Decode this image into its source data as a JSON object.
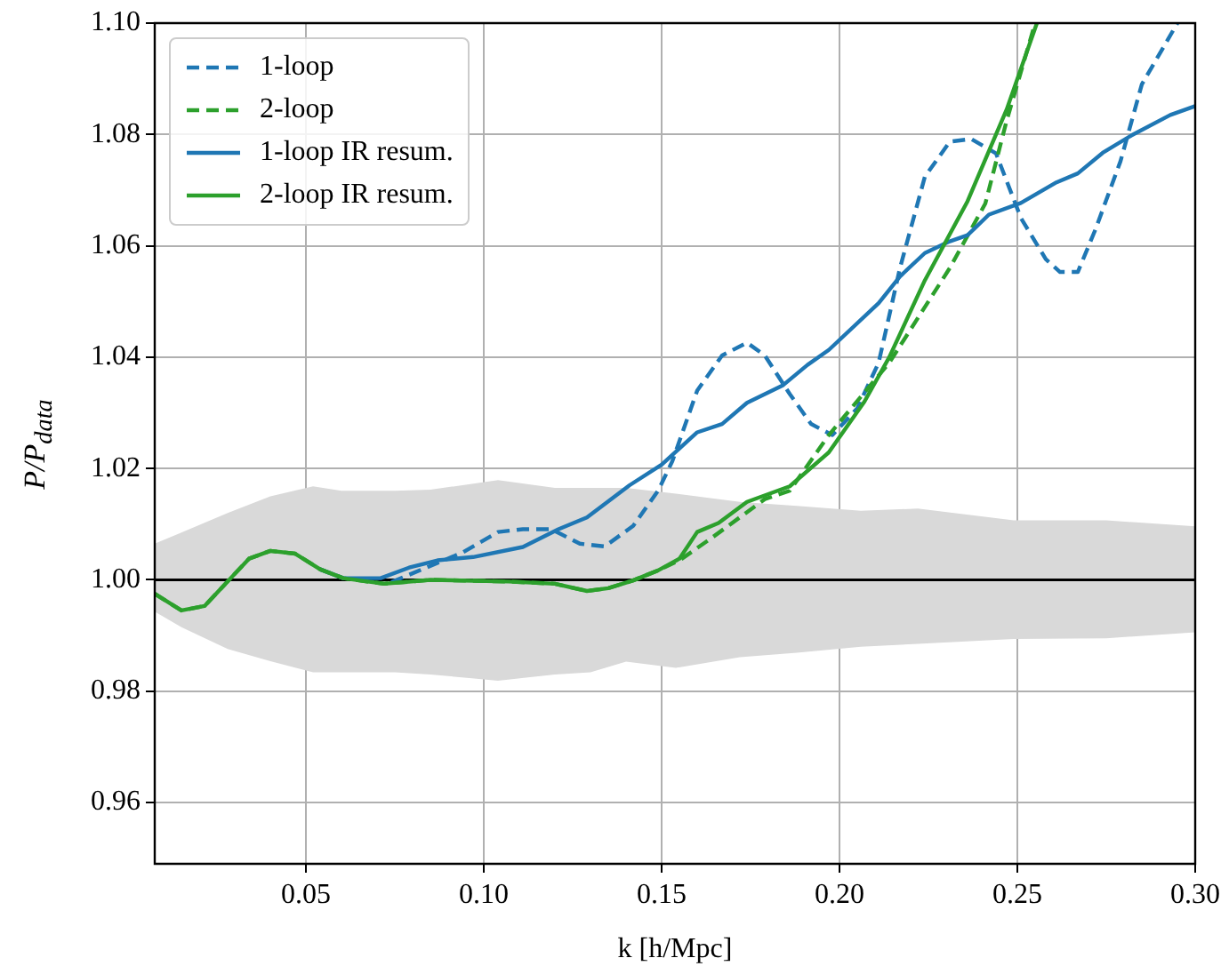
{
  "chart_data": {
    "type": "line",
    "xlabel": "k [h/Mpc]",
    "ylabel": "P/P$_{data}$",
    "xlim": [
      0.0075,
      0.3
    ],
    "ylim": [
      0.949,
      1.1
    ],
    "xticks": [
      {
        "value": 0.05,
        "label": "0.05"
      },
      {
        "value": 0.1,
        "label": "0.10"
      },
      {
        "value": 0.15,
        "label": "0.15"
      },
      {
        "value": 0.2,
        "label": "0.20"
      },
      {
        "value": 0.25,
        "label": "0.25"
      },
      {
        "value": 0.3,
        "label": "0.30"
      }
    ],
    "yticks": [
      {
        "value": 0.96,
        "label": "0.96"
      },
      {
        "value": 0.98,
        "label": "0.98"
      },
      {
        "value": 1.0,
        "label": "1.00"
      },
      {
        "value": 1.02,
        "label": "1.02"
      },
      {
        "value": 1.04,
        "label": "1.04"
      },
      {
        "value": 1.06,
        "label": "1.06"
      },
      {
        "value": 1.08,
        "label": "1.08"
      },
      {
        "value": 1.1,
        "label": "1.10"
      }
    ],
    "grid": true,
    "legend": "top left",
    "series": [
      {
        "color": "#000000",
        "line_style": "solid",
        "x": [
          0.0075,
          0.015,
          0.028,
          0.04,
          0.052,
          0.06,
          0.075,
          0.085,
          0.104,
          0.12,
          0.13,
          0.14,
          0.154,
          0.172,
          0.188,
          0.206,
          0.222,
          0.249,
          0.275,
          0.3
        ],
        "values": [
          1,
          1,
          1,
          1,
          1,
          1,
          1,
          1,
          1,
          1,
          1,
          1,
          1,
          1,
          1,
          1,
          1,
          1,
          1,
          1
        ],
        "upper": [
          1.0065,
          1.0085,
          1.012,
          1.015,
          1.0168,
          1.016,
          1.016,
          1.0162,
          1.0179,
          1.0165,
          1.0165,
          1.0165,
          1.0155,
          1.014,
          1.0133,
          1.0124,
          1.0128,
          1.0107,
          1.0107,
          1.0096
        ],
        "lower": [
          0.9943,
          0.9915,
          0.9876,
          0.9854,
          0.9834,
          0.9834,
          0.9834,
          0.983,
          0.9819,
          0.983,
          0.9834,
          0.9853,
          0.9842,
          0.9861,
          0.9869,
          0.988,
          0.9885,
          0.9894,
          0.9895,
          0.9906
        ]
      },
      {
        "name": "1-loop",
        "color": "#1f77b4",
        "line_style": "dashed",
        "x": [
          0.074,
          0.082,
          0.094,
          0.104,
          0.111,
          0.119,
          0.127,
          0.134,
          0.142,
          0.149,
          0.153,
          0.16,
          0.167,
          0.174,
          0.179,
          0.186,
          0.192,
          0.198,
          0.205,
          0.211,
          0.217,
          0.224,
          0.231,
          0.237,
          0.244,
          0.251,
          0.258,
          0.262,
          0.267,
          0.272,
          0.279,
          0.285,
          0.295
        ],
        "values": [
          0.9996,
          1.0017,
          1.0049,
          1.0086,
          1.0091,
          1.0091,
          1.0065,
          1.006,
          1.0097,
          1.016,
          1.0213,
          1.034,
          1.0403,
          1.0426,
          1.0403,
          1.0334,
          1.028,
          1.026,
          1.0308,
          1.039,
          1.056,
          1.0724,
          1.0787,
          1.0792,
          1.0766,
          1.065,
          1.0576,
          1.0553,
          1.0553,
          1.063,
          1.0752,
          1.089,
          1.1
        ]
      },
      {
        "name": "2-loop",
        "color": "#2ca02c",
        "line_style": "dashed",
        "x": [
          0.0075,
          0.015,
          0.0215,
          0.034,
          0.04,
          0.047,
          0.054,
          0.0605,
          0.072,
          0.085,
          0.107,
          0.12,
          0.129,
          0.135,
          0.142,
          0.149,
          0.155,
          0.164,
          0.179,
          0.186,
          0.197,
          0.214,
          0.231,
          0.241,
          0.247,
          0.255
        ],
        "values": [
          0.9975,
          0.9945,
          0.9953,
          1.0038,
          1.0052,
          1.0047,
          1.0019,
          1.0003,
          0.9993,
          1.0,
          0.9997,
          0.9993,
          0.998,
          0.9985,
          0.9999,
          1.0017,
          1.0035,
          1.0075,
          1.0145,
          1.016,
          1.026,
          1.039,
          1.056,
          1.0676,
          1.0825,
          1.1
        ]
      },
      {
        "name": "1-loop IR resum.",
        "color": "#1f77b4",
        "line_style": "solid",
        "x": [
          0.054,
          0.0605,
          0.071,
          0.079,
          0.087,
          0.097,
          0.111,
          0.121,
          0.129,
          0.141,
          0.15,
          0.16,
          0.167,
          0.174,
          0.184,
          0.191,
          0.197,
          0.211,
          0.217,
          0.224,
          0.231,
          0.236,
          0.242,
          0.251,
          0.261,
          0.267,
          0.274,
          0.282,
          0.293,
          0.3
        ],
        "values": [
          1.0019,
          1.0003,
          1.0003,
          1.0022,
          1.0035,
          1.0041,
          1.0059,
          1.0091,
          1.0112,
          1.017,
          1.0207,
          1.0265,
          1.028,
          1.0318,
          1.0349,
          1.0386,
          1.0413,
          1.0497,
          1.0545,
          1.0587,
          1.0608,
          1.0619,
          1.0656,
          1.0677,
          1.0714,
          1.073,
          1.0767,
          1.0798,
          1.0835,
          1.0851
        ]
      },
      {
        "name": "2-loop IR resum.",
        "color": "#2ca02c",
        "line_style": "solid",
        "x": [
          0.0075,
          0.015,
          0.0215,
          0.034,
          0.04,
          0.047,
          0.054,
          0.0605,
          0.072,
          0.085,
          0.107,
          0.12,
          0.129,
          0.135,
          0.142,
          0.149,
          0.155,
          0.16,
          0.166,
          0.174,
          0.186,
          0.197,
          0.207,
          0.214,
          0.224,
          0.236,
          0.247,
          0.2555
        ],
        "values": [
          0.9975,
          0.9945,
          0.9953,
          1.0038,
          1.0052,
          1.0047,
          1.0019,
          1.0003,
          0.9993,
          1.0,
          0.9997,
          0.9993,
          0.998,
          0.9985,
          0.9999,
          1.0017,
          1.0038,
          1.0086,
          1.0102,
          1.014,
          1.0168,
          1.0229,
          1.032,
          1.04,
          1.0538,
          1.068,
          1.0845,
          1.1
        ]
      }
    ]
  }
}
